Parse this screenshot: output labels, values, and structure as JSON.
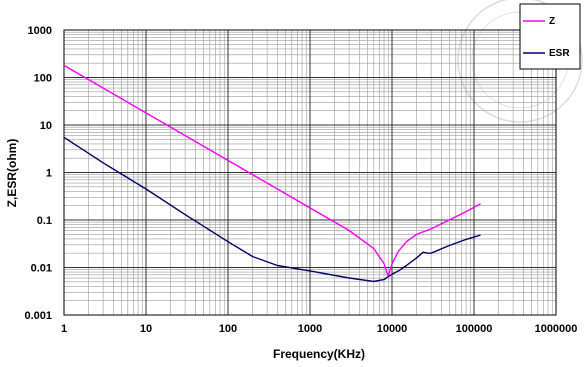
{
  "chart_data": {
    "type": "line",
    "xlabel": "Frequency(KHz)",
    "ylabel": "Z,ESR(ohm)",
    "x_scale": "log",
    "y_scale": "log",
    "xlim": [
      1,
      1000000
    ],
    "ylim": [
      0.001,
      1000
    ],
    "grid": true,
    "legend_position": "top-right",
    "x_tick_labels": [
      "1",
      "10",
      "100",
      "1000",
      "10000",
      "100000",
      "1000000"
    ],
    "y_tick_labels": [
      "1000",
      "100",
      "10",
      "1",
      "0.1",
      "0.01",
      "0.001"
    ],
    "series": [
      {
        "name": "Z",
        "color": "#ff00ff",
        "x": [
          1,
          10,
          100,
          1000,
          3000,
          6000,
          8000,
          9000,
          10000,
          12000,
          15000,
          20000,
          30000,
          50000,
          80000,
          120000
        ],
        "y": [
          180,
          18,
          1.8,
          0.18,
          0.06,
          0.025,
          0.012,
          0.0065,
          0.012,
          0.022,
          0.035,
          0.05,
          0.065,
          0.1,
          0.15,
          0.22
        ]
      },
      {
        "name": "ESR",
        "color": "#000066",
        "x": [
          1,
          3,
          10,
          30,
          100,
          200,
          400,
          1000,
          3000,
          6000,
          8000,
          9000,
          10000,
          12000,
          15000,
          20000,
          24000,
          27000,
          30000,
          50000,
          80000,
          120000
        ],
        "y": [
          5.5,
          1.6,
          0.45,
          0.13,
          0.035,
          0.017,
          0.011,
          0.0085,
          0.006,
          0.0051,
          0.0056,
          0.0064,
          0.0072,
          0.0085,
          0.011,
          0.016,
          0.021,
          0.02,
          0.02,
          0.029,
          0.039,
          0.048
        ]
      }
    ]
  }
}
